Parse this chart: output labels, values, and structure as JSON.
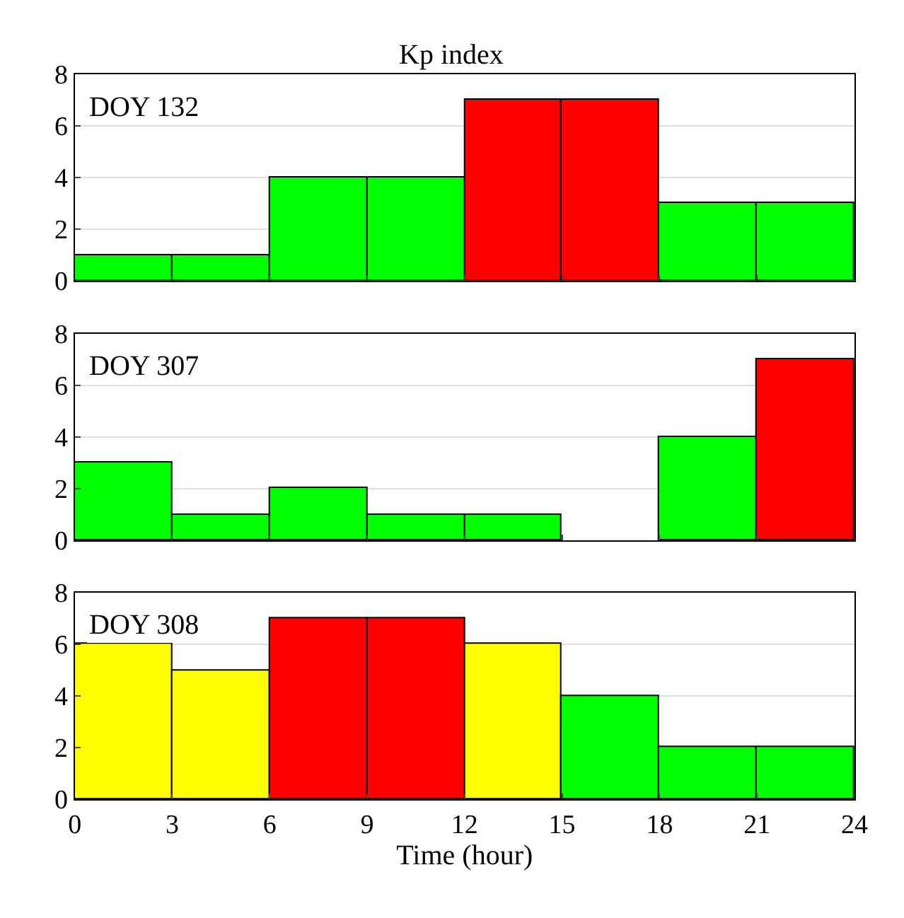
{
  "chart_data": [
    {
      "type": "bar",
      "title": "Kp index",
      "x": [
        1.5,
        4.5,
        7.5,
        10.5,
        13.5,
        16.5,
        19.5,
        22.5
      ],
      "values": [
        1,
        1,
        4,
        4,
        7,
        7,
        3,
        3
      ],
      "colors": [
        "#00ff00",
        "#00ff00",
        "#00ff00",
        "#00ff00",
        "#ff0000",
        "#ff0000",
        "#00ff00",
        "#00ff00"
      ],
      "xlim": [
        0,
        24
      ],
      "xticks": [
        0,
        3,
        6,
        9,
        12,
        15,
        18,
        21,
        24
      ],
      "ylim": [
        0,
        8
      ],
      "yticks": [
        0,
        2,
        4,
        6,
        8
      ],
      "grid": "y",
      "tick_labels": "y",
      "annotations": [
        "DOY 132"
      ]
    },
    {
      "type": "bar",
      "x": [
        1.5,
        4.5,
        7.5,
        10.5,
        13.5,
        16.5,
        19.5,
        22.5
      ],
      "values": [
        3,
        1,
        2,
        1,
        1,
        null,
        4,
        7
      ],
      "colors": [
        "#00ff00",
        "#00ff00",
        "#00ff00",
        "#00ff00",
        "#00ff00",
        "#00ff00",
        "#00ff00",
        "#ff0000"
      ],
      "xlim": [
        0,
        24
      ],
      "xticks": [
        0,
        3,
        6,
        9,
        12,
        15,
        18,
        21,
        24
      ],
      "ylim": [
        0,
        8
      ],
      "yticks": [
        0,
        2,
        4,
        6,
        8
      ],
      "grid": "y",
      "tick_labels": "y",
      "annotations": [
        "DOY 307"
      ]
    },
    {
      "type": "bar",
      "xlabel": "Time (hour)",
      "x": [
        1.5,
        4.5,
        7.5,
        10.5,
        13.5,
        16.5,
        19.5,
        22.5
      ],
      "values": [
        6,
        5,
        7,
        7,
        6,
        4,
        2,
        2
      ],
      "colors": [
        "#ffff00",
        "#ffff00",
        "#ff0000",
        "#ff0000",
        "#ffff00",
        "#00ff00",
        "#00ff00",
        "#00ff00"
      ],
      "xlim": [
        0,
        24
      ],
      "xticks": [
        0,
        3,
        6,
        9,
        12,
        15,
        18,
        21,
        24
      ],
      "ylim": [
        0,
        8
      ],
      "yticks": [
        0,
        2,
        4,
        6,
        8
      ],
      "grid": "y",
      "annotations": [
        "DOY 308"
      ]
    }
  ]
}
